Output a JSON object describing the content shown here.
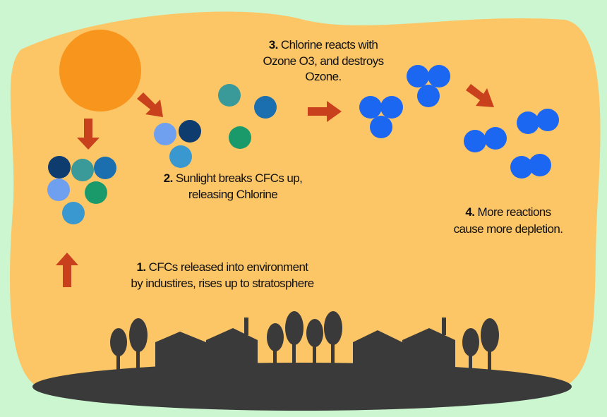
{
  "steps": [
    {
      "number": "1.",
      "lines": [
        "CFCs released into environment",
        "by industires, rises up to stratosphere"
      ]
    },
    {
      "number": "2.",
      "lines": [
        "Sunlight breaks CFCs up,",
        "releasing Chlorine"
      ]
    },
    {
      "number": "3.",
      "lines": [
        "Chlorine reacts with",
        "Ozone O3, and destroys",
        "Ozone."
      ]
    },
    {
      "number": "4.",
      "lines": [
        "More reactions",
        "cause more depletion."
      ]
    }
  ]
}
